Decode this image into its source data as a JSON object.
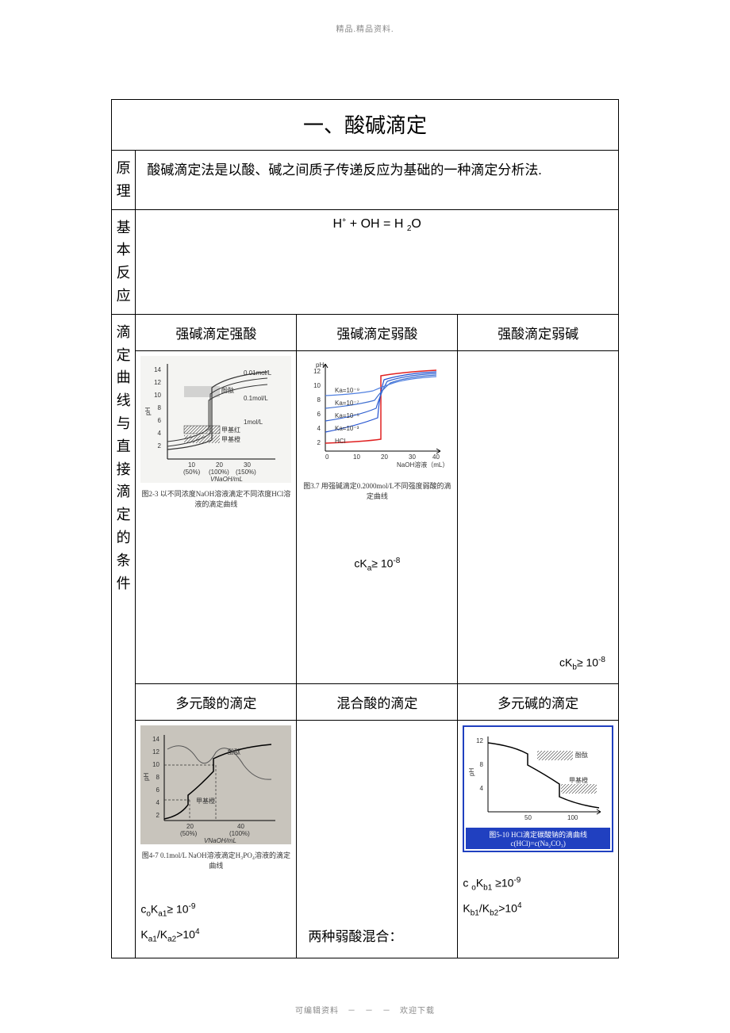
{
  "header": "精品.精品资料.",
  "footer": "可编辑资料　－　－　－　欢迎下载",
  "title": "一、酸碱滴定",
  "sections": {
    "principle": {
      "label": "原理",
      "text": "酸碱滴定法是以酸、碱之间质子传递反应为基础的一种滴定分析法."
    },
    "reaction": {
      "label": "基本反应",
      "eq_left": "H",
      "eq_mid": " + OH = H ",
      "eq_sub2": "2",
      "eq_right": "O"
    },
    "curves_label": "滴定曲线与直接滴定的条件"
  },
  "row1": {
    "c1": {
      "title": "强碱滴定强酸",
      "caption": "图2-3  以不同浓度NaOH溶液滴定不同浓度HCl溶液的滴定曲线",
      "annot1": "0.01mol/L",
      "annot2": "0.1mol/L",
      "annot3": "1mol/L",
      "xlab1": "10",
      "xlab2": "20",
      "xlab3": "30",
      "xpct1": "(50%)",
      "xpct2": "(100%)",
      "xpct3": "(150%)",
      "xaxis": "VNaOH/mL",
      "indic1": "酚酞",
      "indic2": "甲基红",
      "indic3": "甲基橙"
    },
    "c2": {
      "title": "强碱滴定弱酸",
      "caption": "图3.7 用强碱滴定0.2000mol/L不同强度弱酸的滴定曲线",
      "annot_ph": "pH",
      "annot_xaxis": "NaOH溶液（mL）",
      "ka1": "Ka=10⁻³",
      "ka2": "Ka=10⁻⁵",
      "ka3": "Ka=10⁻⁷",
      "ka4": "Ka=10⁻⁹",
      "hcl": "HCl",
      "formula_c": "cK",
      "formula_sub": "a",
      "formula_ge": "≥",
      "formula_10": "10",
      "formula_exp": "-8",
      "xticks": [
        "0",
        "10",
        "20",
        "30",
        "40"
      ],
      "yticks": [
        "2",
        "4",
        "6",
        "8",
        "10",
        "12"
      ]
    },
    "c3": {
      "title": "强酸滴定弱碱",
      "formula_c": "cK",
      "formula_sub": "b",
      "formula_ge": "≥",
      "formula_10": "10",
      "formula_exp": "-8"
    }
  },
  "row2": {
    "c1": {
      "title": "多元酸的滴定",
      "caption": "图4-7  0.1mol/L NaOH溶液滴定H₃PO₄溶液的滴定曲线",
      "annot1": "酚酞",
      "annot2": "甲基橙",
      "xlab1": "20",
      "xlab2": "40",
      "xpct1": "(50%)",
      "xpct2": "(100%)",
      "xaxis": "VNaOH/mL",
      "f1_pre": "c",
      "f1_sub0": "o",
      "f1_K": "K",
      "f1_sub1": "a1",
      "f1_ge": "≥",
      "f1_10": "10",
      "f1_exp": "-9",
      "f2_K": "K",
      "f2_sub1": "a1",
      "f2_slash": "/K",
      "f2_sub2": "a2",
      "f2_gt": ">10",
      "f2_exp": "4"
    },
    "c2": {
      "title": "混合酸的滴定",
      "text": "两种弱酸混合："
    },
    "c3": {
      "title": "多元碱的滴定",
      "caption": "图5-10  HCl滴定碳酸钠的滴曲线  c(HCl)=c(Na₂CO₃)",
      "annot1": "酚酞",
      "annot2": "甲基橙",
      "xlab1": "50",
      "xlab2": "100",
      "f1_pre": "c ",
      "f1_sub0": "o",
      "f1_K": "K",
      "f1_sub1": "b1",
      "f1_ge": "≥",
      "f1_10": "10",
      "f1_exp": "-9",
      "f2_K": "K",
      "f2_sub1": "b1",
      "f2_slash": "/K",
      "f2_sub2": "b2",
      "f2_gt": ">10",
      "f2_exp": "4"
    }
  },
  "colors": {
    "red": "#e02020",
    "blue1": "#2050d0",
    "blue2": "#3060d0",
    "blue3": "#4070d0",
    "blue4": "#5080e0",
    "black": "#000000",
    "gray": "#888888"
  }
}
